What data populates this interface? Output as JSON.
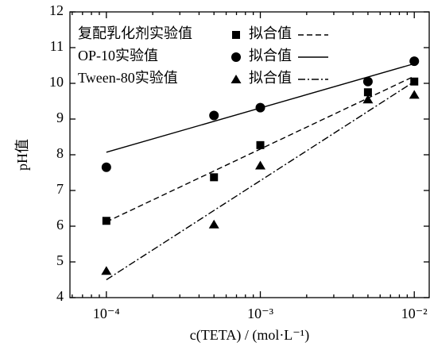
{
  "chart_data": {
    "type": "scatter",
    "x_label": "c(TETA) / (mol·L⁻¹)",
    "y_label": "pH值",
    "xscale": "log",
    "xlim": [
      5.8e-05,
      0.0125
    ],
    "ylim": [
      4,
      12
    ],
    "xticks": [
      {
        "value": 0.0001,
        "label": "10⁻⁴"
      },
      {
        "value": 0.001,
        "label": "10⁻³"
      },
      {
        "value": 0.01,
        "label": "10⁻²"
      }
    ],
    "xminorticks": [
      6e-05,
      7e-05,
      8e-05,
      9e-05,
      0.0002,
      0.0003,
      0.0004,
      0.0005,
      0.0006,
      0.0007,
      0.0008,
      0.0009,
      0.002,
      0.003,
      0.004,
      0.005,
      0.006,
      0.007,
      0.008,
      0.009
    ],
    "yticks": [
      4,
      5,
      6,
      7,
      8,
      9,
      10,
      11,
      12
    ],
    "series": [
      {
        "name": "复配乳化剂实验值",
        "marker": "square",
        "color": "#000000",
        "x": [
          0.0001,
          0.0005,
          0.001,
          0.005,
          0.01
        ],
        "values": [
          6.15,
          7.37,
          8.27,
          9.75,
          10.05
        ]
      },
      {
        "name": "OP-10实验值",
        "marker": "circle",
        "color": "#000000",
        "x": [
          0.0001,
          0.0005,
          0.001,
          0.005,
          0.01
        ],
        "values": [
          7.65,
          9.1,
          9.32,
          10.05,
          10.62
        ]
      },
      {
        "name": "Tween-80实验值",
        "marker": "triangle",
        "color": "#000000",
        "x": [
          0.0001,
          0.0005,
          0.001,
          0.005,
          0.01
        ],
        "values": [
          4.75,
          6.05,
          7.7,
          9.55,
          9.68
        ]
      }
    ],
    "fits": [
      {
        "name": "拟合值",
        "dash": "dashed",
        "color": "#000000",
        "x": [
          0.0001,
          0.01
        ],
        "values": [
          6.12,
          10.2
        ]
      },
      {
        "name": "拟合值",
        "dash": "solid",
        "color": "#000000",
        "x": [
          0.0001,
          0.01
        ],
        "values": [
          8.07,
          10.55
        ]
      },
      {
        "name": "拟合值",
        "dash": "dashdot",
        "color": "#000000",
        "x": [
          0.0001,
          0.01
        ],
        "values": [
          4.5,
          10.05
        ]
      }
    ]
  }
}
